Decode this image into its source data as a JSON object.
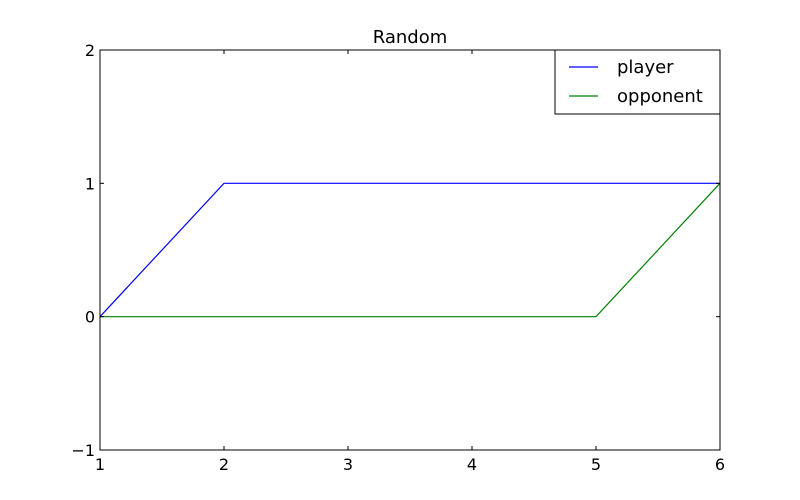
{
  "chart_data": {
    "type": "line",
    "title": "Random",
    "xlabel": "",
    "ylabel": "",
    "xlim": [
      1,
      6
    ],
    "ylim": [
      -1,
      2
    ],
    "xticks": [
      1,
      2,
      3,
      4,
      5,
      6
    ],
    "yticks": [
      -1,
      0,
      1,
      2
    ],
    "xtick_labels": [
      "1",
      "2",
      "3",
      "4",
      "5",
      "6"
    ],
    "ytick_labels": [
      "−1",
      "0",
      "1",
      "2"
    ],
    "grid": false,
    "legend_position": "top-right",
    "series": [
      {
        "name": "player",
        "color": "#0000ff",
        "x": [
          1,
          2,
          3,
          4,
          5,
          6
        ],
        "y": [
          0,
          1,
          1,
          1,
          1,
          1
        ]
      },
      {
        "name": "opponent",
        "color": "#008000",
        "x": [
          1,
          2,
          3,
          4,
          5,
          6
        ],
        "y": [
          0,
          0,
          0,
          0,
          0,
          1
        ]
      }
    ]
  }
}
